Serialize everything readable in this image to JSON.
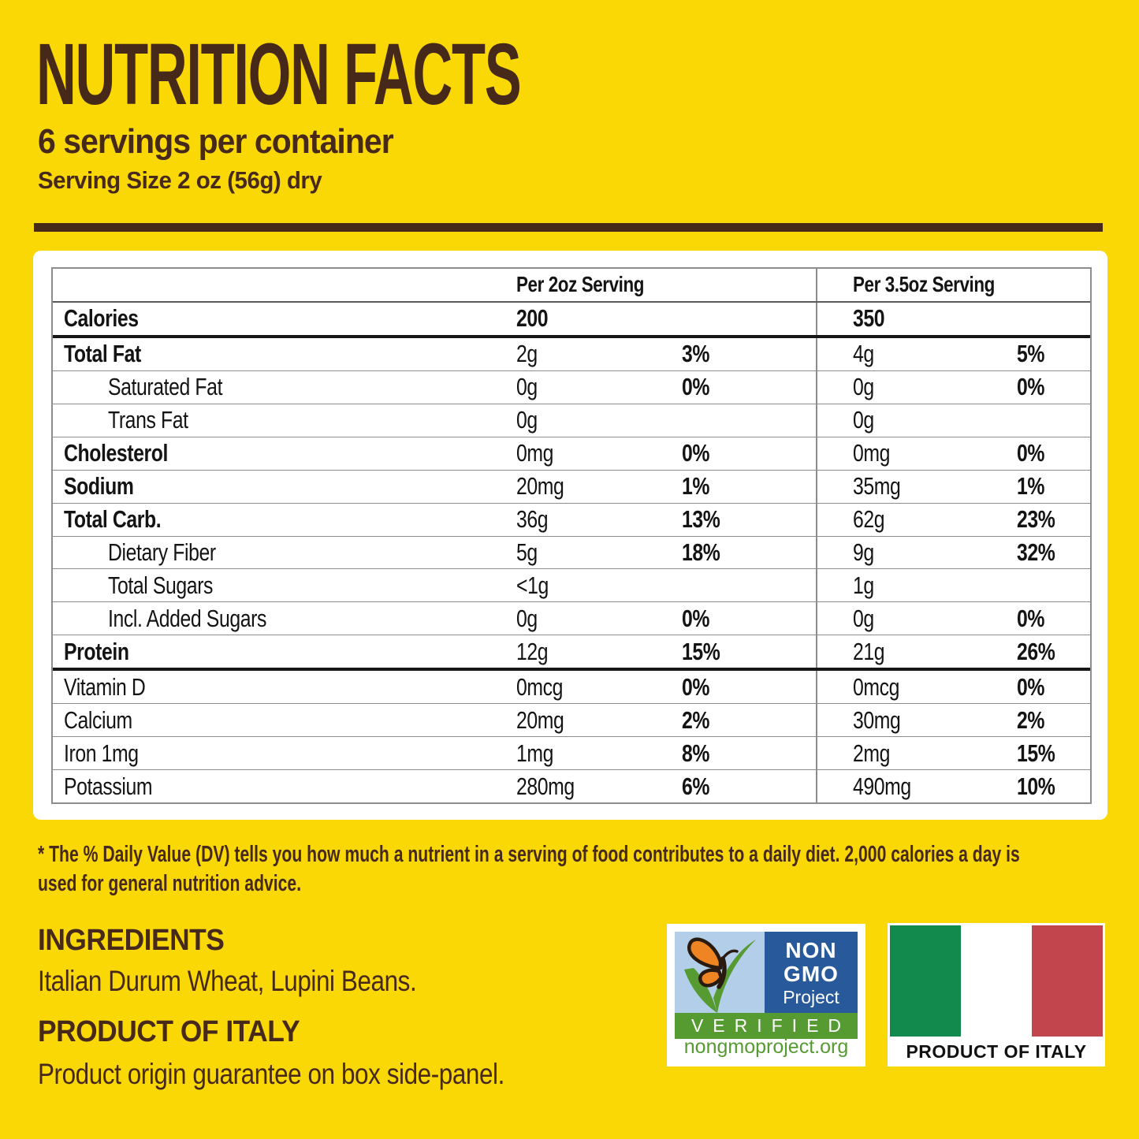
{
  "colors": {
    "background": "#F9D806",
    "brown": "#47291A",
    "table_text": "#141414",
    "thin_border": "#8D8D8D",
    "thick_border": "#161616",
    "header_border": "#5A5A5A",
    "nongmo_sky": "#B3CEE9",
    "nongmo_blue": "#27599B",
    "nongmo_green": "#569A32",
    "butterfly_orange": "#EF8522",
    "butterfly_outline": "#2A1B10",
    "flag_green": "#128A4E",
    "flag_red": "#C2444D"
  },
  "header": {
    "title": "NUTRITION FACTS",
    "servings_per_container": "6 servings per container",
    "serving_size": "Serving Size 2 oz (56g) dry"
  },
  "table": {
    "col_headers": [
      "Per 2oz Serving",
      "Per 3.5oz Serving"
    ],
    "rows": [
      {
        "label": "Calories",
        "value1": "200",
        "pct1": "",
        "value2": "350",
        "pct2": "",
        "label_bold": true,
        "value_bold": true,
        "thick_bottom": true
      },
      {
        "label": "Total Fat",
        "value1": "2g",
        "pct1": "3%",
        "value2": "4g",
        "pct2": "5%",
        "label_bold": true
      },
      {
        "label": "Saturated Fat",
        "value1": "0g",
        "pct1": "0%",
        "value2": "0g",
        "pct2": "0%",
        "indent": true
      },
      {
        "label": "Trans Fat",
        "value1": "0g",
        "pct1": "",
        "value2": "0g",
        "pct2": "",
        "indent": true
      },
      {
        "label": "Cholesterol",
        "value1": "0mg",
        "pct1": "0%",
        "value2": "0mg",
        "pct2": "0%",
        "label_bold": true
      },
      {
        "label": "Sodium",
        "value1": "20mg",
        "pct1": "1%",
        "value2": "35mg",
        "pct2": "1%",
        "label_bold": true
      },
      {
        "label": "Total Carb.",
        "value1": "36g",
        "pct1": "13%",
        "value2": "62g",
        "pct2": "23%",
        "label_bold": true
      },
      {
        "label": "Dietary Fiber",
        "value1": "5g",
        "pct1": "18%",
        "value2": "9g",
        "pct2": "32%",
        "indent": true
      },
      {
        "label": "Total Sugars",
        "value1": "<1g",
        "pct1": "",
        "value2": "1g",
        "pct2": "",
        "indent": true
      },
      {
        "label": "Incl. Added Sugars",
        "value1": "0g",
        "pct1": "0%",
        "value2": "0g",
        "pct2": "0%",
        "indent": true
      },
      {
        "label": "Protein",
        "value1": "12g",
        "pct1": "15%",
        "value2": "21g",
        "pct2": "26%",
        "label_bold": true,
        "thick_bottom": true
      },
      {
        "label": "Vitamin D",
        "value1": "0mcg",
        "pct1": "0%",
        "value2": "0mcg",
        "pct2": "0%"
      },
      {
        "label": "Calcium",
        "value1": "20mg",
        "pct1": "2%",
        "value2": "30mg",
        "pct2": "2%"
      },
      {
        "label": "Iron 1mg",
        "value1": "1mg",
        "pct1": "8%",
        "value2": "2mg",
        "pct2": "15%"
      },
      {
        "label": "Potassium",
        "value1": "280mg",
        "pct1": "6%",
        "value2": "490mg",
        "pct2": "10%"
      }
    ]
  },
  "footnote_lines": [
    "* The % Daily Value (DV) tells you how much a nutrient in a serving of food contributes to a daily diet. 2,000 calories a day is",
    "used for general nutrition advice."
  ],
  "ingredients": {
    "title": "INGREDIENTS",
    "text": "Italian Durum Wheat, Lupini Beans."
  },
  "origin": {
    "title": "PRODUCT OF ITALY",
    "text": "Product origin guarantee on box side-panel."
  },
  "badges": {
    "non_gmo": {
      "line1": "NON",
      "line2": "GMO",
      "line3": "Project",
      "verified": "VERIFIED",
      "url": "nongmoproject.org"
    },
    "italy_flag_label": "PRODUCT OF ITALY"
  }
}
